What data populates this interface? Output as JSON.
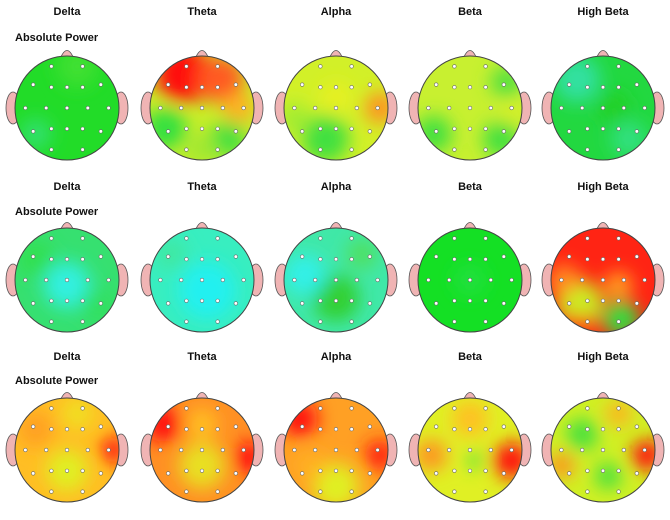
{
  "rows": [
    {
      "bands": [
        "Delta",
        "Theta",
        "Alpha",
        "Beta",
        "High Beta"
      ],
      "label": "Absolute Power"
    },
    {
      "bands": [
        "Delta",
        "Theta",
        "Alpha",
        "Beta",
        "High Beta"
      ],
      "label": "Absolute Power"
    },
    {
      "bands": [
        "Delta",
        "Theta",
        "Alpha",
        "Beta",
        "High Beta"
      ],
      "label": "Absolute Power"
    }
  ]
}
